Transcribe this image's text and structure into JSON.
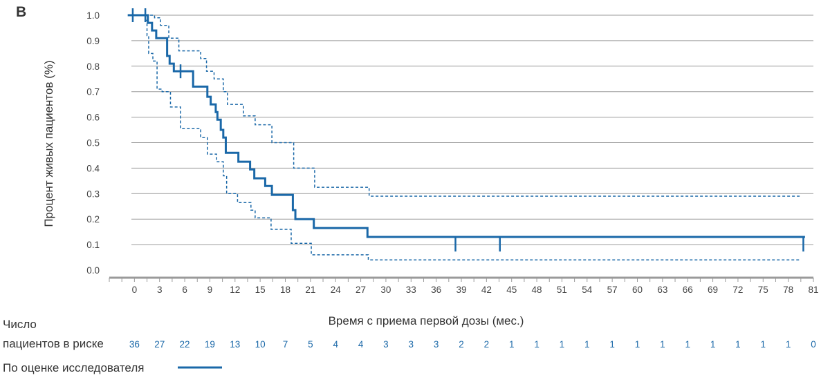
{
  "panel_label": "B",
  "colors": {
    "accent": "#1a68a8",
    "grid": "#9a9a9a",
    "axis": "#9a9a9a",
    "risk_numbers": "#1a68a8"
  },
  "risk_table": {
    "label_line1": "Число",
    "label_line2": "пациентов в риске",
    "values": [
      36,
      27,
      22,
      19,
      13,
      10,
      7,
      5,
      4,
      4,
      3,
      3,
      3,
      2,
      2,
      1,
      1,
      1,
      1,
      1,
      1,
      1,
      1,
      1,
      1,
      1,
      1,
      0
    ],
    "times": [
      0,
      3,
      6,
      9,
      12,
      15,
      18,
      21,
      24,
      27,
      30,
      33,
      36,
      39,
      42,
      45,
      48,
      51,
      54,
      57,
      60,
      63,
      66,
      69,
      72,
      75,
      78,
      81
    ]
  },
  "legend": {
    "label": "По оценке исследователя"
  },
  "chart_data": {
    "type": "line",
    "title": "",
    "xlabel": "Время с приема первой дозы (мес.)",
    "ylabel": "Процент живых пациентов (%)",
    "xlim": [
      -3,
      81
    ],
    "ylim": [
      0,
      1.0
    ],
    "xticks": [
      0,
      3,
      6,
      9,
      12,
      15,
      18,
      21,
      24,
      27,
      30,
      33,
      36,
      39,
      42,
      45,
      48,
      51,
      54,
      57,
      60,
      63,
      66,
      69,
      72,
      75,
      78,
      81
    ],
    "yticks": [
      0.0,
      0.1,
      0.2,
      0.3,
      0.4,
      0.5,
      0.6,
      0.7,
      0.8,
      0.9,
      1.0
    ],
    "ytick_labels": [
      "0.0",
      "0.1",
      "0.2",
      "0.3",
      "0.4",
      "0.5",
      "0.6",
      "0.7",
      "0.8",
      "0.9",
      "1.0"
    ],
    "grid": true,
    "series": [
      {
        "role": "estimate",
        "step": true,
        "x": [
          -0.8,
          1.1,
          1.6,
          2.1,
          2.6,
          3.9,
          4.2,
          4.7,
          5.5,
          7.0,
          8.7,
          9.1,
          9.7,
          9.9,
          10.3,
          10.6,
          10.9,
          12.4,
          13.8,
          14.3,
          15.6,
          16.4,
          18.9,
          19.2,
          21.4,
          27.8,
          80.0
        ],
        "y": [
          1.0,
          1.0,
          0.97,
          0.94,
          0.91,
          0.84,
          0.81,
          0.78,
          0.78,
          0.72,
          0.68,
          0.65,
          0.62,
          0.59,
          0.55,
          0.52,
          0.46,
          0.425,
          0.395,
          0.36,
          0.33,
          0.295,
          0.235,
          0.2,
          0.165,
          0.13,
          0.1
        ]
      },
      {
        "role": "ci-upper",
        "step": true,
        "x": [
          1.3,
          2.4,
          3.1,
          4.1,
          5.3,
          7.9,
          8.6,
          9.5,
          10.6,
          11.1,
          13.0,
          14.4,
          16.4,
          19.0,
          21.5,
          28.0,
          79.5
        ],
        "y": [
          1.0,
          0.99,
          0.96,
          0.91,
          0.86,
          0.83,
          0.78,
          0.75,
          0.7,
          0.65,
          0.605,
          0.57,
          0.5,
          0.4,
          0.325,
          0.29,
          0.24
        ]
      },
      {
        "role": "ci-lower",
        "step": true,
        "x": [
          1.3,
          1.5,
          1.7,
          2.2,
          2.7,
          3.3,
          4.3,
          5.5,
          7.9,
          8.7,
          9.8,
          10.6,
          11.0,
          12.3,
          13.9,
          14.4,
          16.3,
          18.7,
          21.1,
          27.9,
          79.5
        ],
        "y": [
          0.98,
          0.92,
          0.85,
          0.82,
          0.71,
          0.7,
          0.64,
          0.555,
          0.52,
          0.455,
          0.425,
          0.37,
          0.3,
          0.265,
          0.235,
          0.205,
          0.16,
          0.105,
          0.06,
          0.04,
          0.02
        ]
      }
    ],
    "censor_marks": [
      {
        "x": -0.2,
        "y": 1.0
      },
      {
        "x": 1.3,
        "y": 1.0
      },
      {
        "x": 5.5,
        "y": 0.78
      },
      {
        "x": 38.3,
        "y": 0.1
      },
      {
        "x": 43.6,
        "y": 0.1
      },
      {
        "x": 79.8,
        "y": 0.1
      }
    ]
  }
}
